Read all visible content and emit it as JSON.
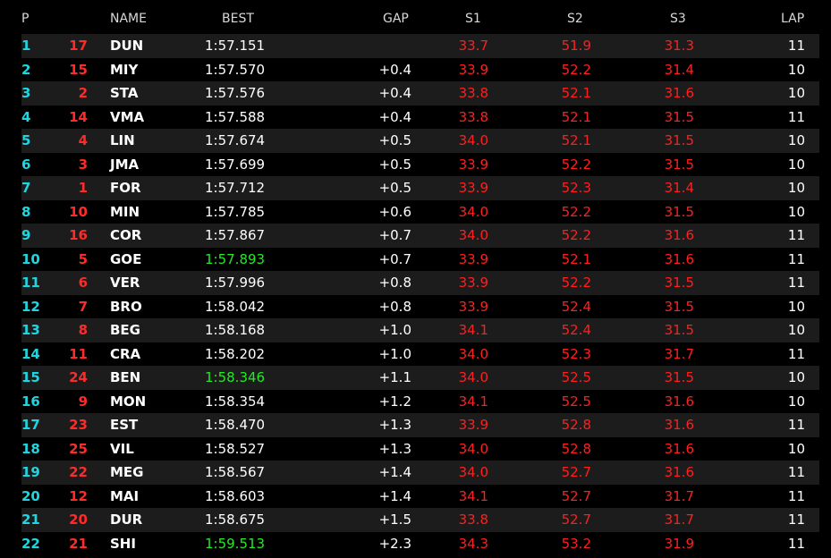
{
  "header": {
    "pos": "P",
    "name": "NAME",
    "best": "BEST",
    "gap": "GAP",
    "s1": "S1",
    "s2": "S2",
    "s3": "S3",
    "lap": "LAP"
  },
  "colors": {
    "position": "#1fd6e0",
    "car_number": "#ff2a2a",
    "sector": "#ff1f1f",
    "best_highlight": "#27e827",
    "row_alt": "#1c1c1c",
    "background": "#000000"
  },
  "rows": [
    {
      "pos": "1",
      "num": "17",
      "name": "DUN",
      "best": "1:57.151",
      "best_highlight": false,
      "gap": "",
      "s1": "33.7",
      "s2": "51.9",
      "s3": "31.3",
      "lap": "11"
    },
    {
      "pos": "2",
      "num": "15",
      "name": "MIY",
      "best": "1:57.570",
      "best_highlight": false,
      "gap": "+0.4",
      "s1": "33.9",
      "s2": "52.2",
      "s3": "31.4",
      "lap": "10"
    },
    {
      "pos": "3",
      "num": "2",
      "name": "STA",
      "best": "1:57.576",
      "best_highlight": false,
      "gap": "+0.4",
      "s1": "33.8",
      "s2": "52.1",
      "s3": "31.6",
      "lap": "10"
    },
    {
      "pos": "4",
      "num": "14",
      "name": "VMA",
      "best": "1:57.588",
      "best_highlight": false,
      "gap": "+0.4",
      "s1": "33.8",
      "s2": "52.1",
      "s3": "31.5",
      "lap": "11"
    },
    {
      "pos": "5",
      "num": "4",
      "name": "LIN",
      "best": "1:57.674",
      "best_highlight": false,
      "gap": "+0.5",
      "s1": "34.0",
      "s2": "52.1",
      "s3": "31.5",
      "lap": "10"
    },
    {
      "pos": "6",
      "num": "3",
      "name": "JMA",
      "best": "1:57.699",
      "best_highlight": false,
      "gap": "+0.5",
      "s1": "33.9",
      "s2": "52.2",
      "s3": "31.5",
      "lap": "10"
    },
    {
      "pos": "7",
      "num": "1",
      "name": "FOR",
      "best": "1:57.712",
      "best_highlight": false,
      "gap": "+0.5",
      "s1": "33.9",
      "s2": "52.3",
      "s3": "31.4",
      "lap": "10"
    },
    {
      "pos": "8",
      "num": "10",
      "name": "MIN",
      "best": "1:57.785",
      "best_highlight": false,
      "gap": "+0.6",
      "s1": "34.0",
      "s2": "52.2",
      "s3": "31.5",
      "lap": "10"
    },
    {
      "pos": "9",
      "num": "16",
      "name": "COR",
      "best": "1:57.867",
      "best_highlight": false,
      "gap": "+0.7",
      "s1": "34.0",
      "s2": "52.2",
      "s3": "31.6",
      "lap": "11"
    },
    {
      "pos": "10",
      "num": "5",
      "name": "GOE",
      "best": "1:57.893",
      "best_highlight": true,
      "gap": "+0.7",
      "s1": "33.9",
      "s2": "52.1",
      "s3": "31.6",
      "lap": "11"
    },
    {
      "pos": "11",
      "num": "6",
      "name": "VER",
      "best": "1:57.996",
      "best_highlight": false,
      "gap": "+0.8",
      "s1": "33.9",
      "s2": "52.2",
      "s3": "31.5",
      "lap": "11"
    },
    {
      "pos": "12",
      "num": "7",
      "name": "BRO",
      "best": "1:58.042",
      "best_highlight": false,
      "gap": "+0.8",
      "s1": "33.9",
      "s2": "52.4",
      "s3": "31.5",
      "lap": "10"
    },
    {
      "pos": "13",
      "num": "8",
      "name": "BEG",
      "best": "1:58.168",
      "best_highlight": false,
      "gap": "+1.0",
      "s1": "34.1",
      "s2": "52.4",
      "s3": "31.5",
      "lap": "10"
    },
    {
      "pos": "14",
      "num": "11",
      "name": "CRA",
      "best": "1:58.202",
      "best_highlight": false,
      "gap": "+1.0",
      "s1": "34.0",
      "s2": "52.3",
      "s3": "31.7",
      "lap": "11"
    },
    {
      "pos": "15",
      "num": "24",
      "name": "BEN",
      "best": "1:58.346",
      "best_highlight": true,
      "gap": "+1.1",
      "s1": "34.0",
      "s2": "52.5",
      "s3": "31.5",
      "lap": "10"
    },
    {
      "pos": "16",
      "num": "9",
      "name": "MON",
      "best": "1:58.354",
      "best_highlight": false,
      "gap": "+1.2",
      "s1": "34.1",
      "s2": "52.5",
      "s3": "31.6",
      "lap": "10"
    },
    {
      "pos": "17",
      "num": "23",
      "name": "EST",
      "best": "1:58.470",
      "best_highlight": false,
      "gap": "+1.3",
      "s1": "33.9",
      "s2": "52.8",
      "s3": "31.6",
      "lap": "11"
    },
    {
      "pos": "18",
      "num": "25",
      "name": "VIL",
      "best": "1:58.527",
      "best_highlight": false,
      "gap": "+1.3",
      "s1": "34.0",
      "s2": "52.8",
      "s3": "31.6",
      "lap": "10"
    },
    {
      "pos": "19",
      "num": "22",
      "name": "MEG",
      "best": "1:58.567",
      "best_highlight": false,
      "gap": "+1.4",
      "s1": "34.0",
      "s2": "52.7",
      "s3": "31.6",
      "lap": "11"
    },
    {
      "pos": "20",
      "num": "12",
      "name": "MAI",
      "best": "1:58.603",
      "best_highlight": false,
      "gap": "+1.4",
      "s1": "34.1",
      "s2": "52.7",
      "s3": "31.7",
      "lap": "11"
    },
    {
      "pos": "21",
      "num": "20",
      "name": "DUR",
      "best": "1:58.675",
      "best_highlight": false,
      "gap": "+1.5",
      "s1": "33.8",
      "s2": "52.7",
      "s3": "31.7",
      "lap": "11"
    },
    {
      "pos": "22",
      "num": "21",
      "name": "SHI",
      "best": "1:59.513",
      "best_highlight": true,
      "gap": "+2.3",
      "s1": "34.3",
      "s2": "53.2",
      "s3": "31.9",
      "lap": "11"
    }
  ]
}
